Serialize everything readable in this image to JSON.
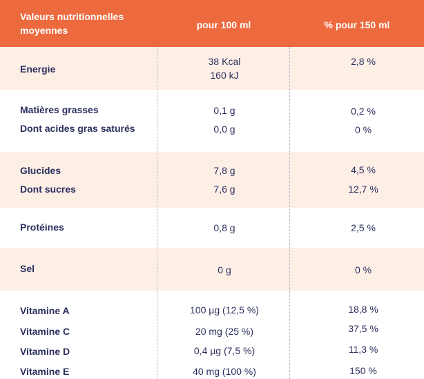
{
  "header": {
    "col1": "Valeurs nutritionnelles moyennes",
    "col2": "pour 100 ml",
    "col3": "% pour 150 ml"
  },
  "rows": [
    {
      "label": "Energie",
      "per100": [
        "38 Kcal",
        "160 kJ"
      ],
      "pct": "2,8 %"
    },
    {
      "label": "Matières grasses",
      "per100": [
        "0,1 g"
      ],
      "pct": "0,2 %"
    },
    {
      "label": "Dont acides gras saturés",
      "per100": [
        "0,0 g"
      ],
      "pct": "0 %"
    },
    {
      "label": "Glucides",
      "per100": [
        "7,8 g"
      ],
      "pct": "4,5 %"
    },
    {
      "label": "Dont sucres",
      "per100": [
        "7,6 g"
      ],
      "pct": "12,7 %"
    },
    {
      "label": "Protéines",
      "per100": [
        "0,8 g"
      ],
      "pct": "2,5 %"
    },
    {
      "label": "Sel",
      "per100": [
        "0 g"
      ],
      "pct": "0 %"
    },
    {
      "label": "Vitamine A",
      "per100": [
        "100 µg (12,5 %)"
      ],
      "pct": "18,8 %"
    },
    {
      "label": "Vitamine C",
      "per100": [
        "20 mg (25 %)"
      ],
      "pct": "37,5 %"
    },
    {
      "label": "Vitamine D",
      "per100": [
        "0,4 µg (7,5 %)"
      ],
      "pct": "11,3 %"
    },
    {
      "label": "Vitamine E",
      "per100": [
        "40 mg (100 %)"
      ],
      "pct": "150 %"
    }
  ],
  "colors": {
    "header_bg": "#ec6a3e",
    "shade_bg": "#fdeee6",
    "text": "#2b2f5e"
  }
}
